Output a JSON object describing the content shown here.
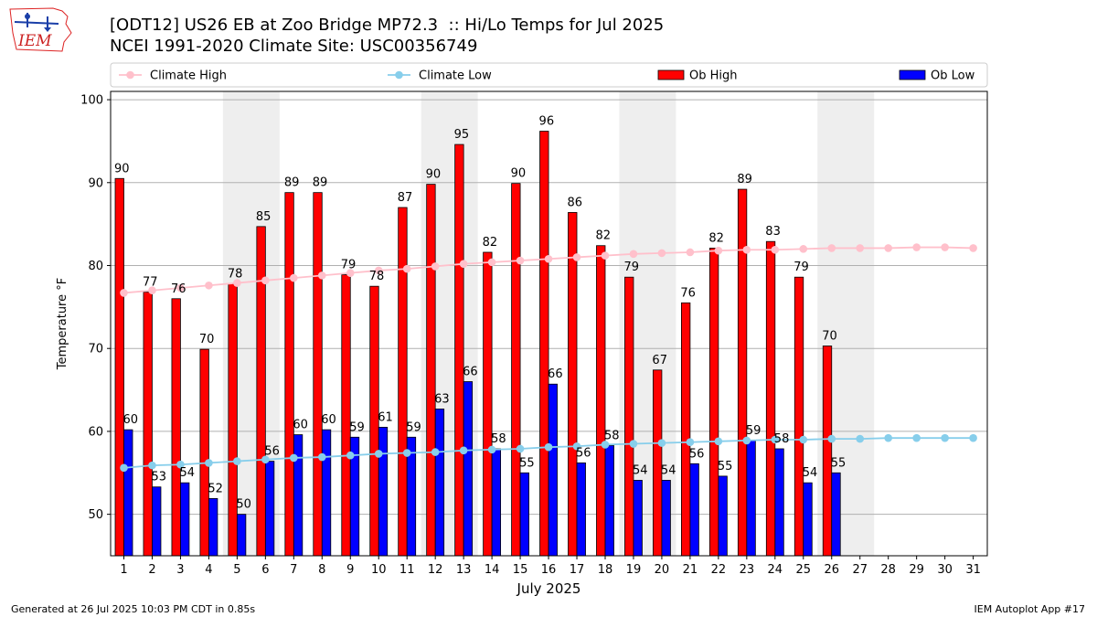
{
  "header": {
    "title_line1": "[ODT12] US26 EB at Zoo Bridge MP72.3  :: Hi/Lo Temps for Jul 2025",
    "title_line2": "NCEI 1991-2020 Climate Site: USC00356749"
  },
  "logo": {
    "text": "IEM",
    "icon": "iowa-state-logo-icon"
  },
  "footer": {
    "left": "Generated at 26 Jul 2025 10:03 PM CDT in 0.85s",
    "right": "IEM Autoplot App #17"
  },
  "colors": {
    "ob_high": "#ff0000",
    "ob_low": "#0000ff",
    "climate_high": "#ffc0cb",
    "climate_low": "#87ceeb",
    "weekend_shade": "#eeeeee",
    "grid": "#b0b0b0"
  },
  "chart_data": {
    "type": "bar",
    "title": "[ODT12] US26 EB at Zoo Bridge MP72.3  :: Hi/Lo Temps for Jul 2025",
    "xlabel": "July 2025",
    "ylabel": "Temperature °F",
    "ylim": [
      45,
      101
    ],
    "yticks": [
      50,
      60,
      70,
      80,
      90,
      100
    ],
    "grid": "horizontal",
    "legend_position": "top",
    "legend": [
      "Climate High",
      "Climate Low",
      "Ob High",
      "Ob Low"
    ],
    "categories": [
      "1",
      "2",
      "3",
      "4",
      "5",
      "6",
      "7",
      "8",
      "9",
      "10",
      "11",
      "12",
      "13",
      "14",
      "15",
      "16",
      "17",
      "18",
      "19",
      "20",
      "21",
      "22",
      "23",
      "24",
      "25",
      "26",
      "27",
      "28",
      "29",
      "30",
      "31"
    ],
    "shaded_days": [
      [
        5,
        6
      ],
      [
        12,
        13
      ],
      [
        19,
        20
      ],
      [
        26,
        27
      ]
    ],
    "series": [
      {
        "name": "Ob High",
        "kind": "bar",
        "values": [
          90.5,
          76.8,
          76.0,
          69.9,
          77.8,
          84.7,
          88.8,
          88.8,
          78.9,
          77.5,
          87.0,
          89.8,
          94.6,
          81.6,
          89.9,
          96.2,
          86.4,
          82.4,
          78.6,
          67.4,
          75.5,
          82.1,
          89.2,
          82.9,
          78.6,
          70.3,
          null,
          null,
          null,
          null,
          null
        ],
        "labels": [
          "90",
          "77",
          "76",
          "70",
          "78",
          "85",
          "89",
          "89",
          "79",
          "78",
          "87",
          "90",
          "95",
          "82",
          "90",
          "96",
          "86",
          "82",
          "79",
          "67",
          "76",
          "82",
          "89",
          "83",
          "79",
          "70",
          null,
          null,
          null,
          null,
          null
        ]
      },
      {
        "name": "Ob Low",
        "kind": "bar",
        "values": [
          60.2,
          53.3,
          53.8,
          51.9,
          50.0,
          56.4,
          59.6,
          60.2,
          59.3,
          60.5,
          59.3,
          62.7,
          66.0,
          57.9,
          55.0,
          65.7,
          56.2,
          58.3,
          54.1,
          54.1,
          56.1,
          54.6,
          58.9,
          57.9,
          53.8,
          55.0,
          null,
          null,
          null,
          null,
          null
        ],
        "labels": [
          "60",
          "53",
          "54",
          "52",
          "50",
          "56",
          "60",
          "60",
          "59",
          "61",
          "59",
          "63",
          "66",
          "58",
          "55",
          "66",
          "56",
          "58",
          "54",
          "54",
          "56",
          "55",
          "59",
          "58",
          "54",
          "55",
          null,
          null,
          null,
          null,
          null
        ]
      },
      {
        "name": "Climate High",
        "kind": "line",
        "values": [
          76.7,
          77.0,
          77.3,
          77.6,
          77.9,
          78.2,
          78.5,
          78.8,
          79.1,
          79.4,
          79.6,
          79.9,
          80.2,
          80.4,
          80.6,
          80.8,
          81.0,
          81.2,
          81.4,
          81.5,
          81.6,
          81.8,
          81.9,
          81.9,
          82.0,
          82.1,
          82.1,
          82.1,
          82.2,
          82.2,
          82.1
        ]
      },
      {
        "name": "Climate Low",
        "kind": "line",
        "values": [
          55.6,
          55.9,
          56.0,
          56.2,
          56.4,
          56.6,
          56.8,
          56.9,
          57.1,
          57.3,
          57.4,
          57.5,
          57.7,
          57.8,
          57.9,
          58.1,
          58.2,
          58.4,
          58.5,
          58.6,
          58.7,
          58.8,
          58.9,
          59.0,
          59.0,
          59.1,
          59.1,
          59.2,
          59.2,
          59.2,
          59.2
        ]
      }
    ]
  }
}
